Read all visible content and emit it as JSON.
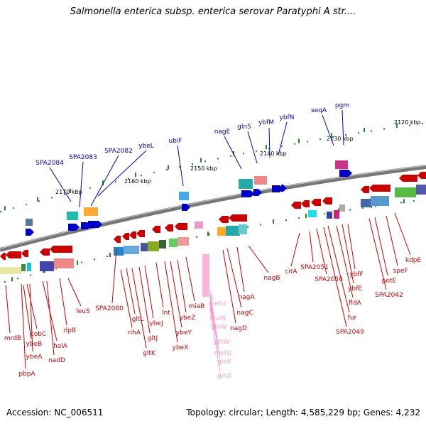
{
  "title": "Salmonella enterica subsp. enterica serovar Paratyphi A str....",
  "footer": {
    "accession": "Accession: NC_006511",
    "summary": "Topology: circular; Length: 4,585,229 bp; Genes: 4,232"
  },
  "colors": {
    "forward_gene": "#0000cc",
    "reverse_gene": "#cc0000",
    "rna_gene": "#ff99cc",
    "backbone": "#888888",
    "tick_mark": "#228822"
  },
  "scale_ticks": [
    "2170 kbp",
    "2160 kbp",
    "2150 kbp",
    "2140 kbp",
    "2130 kbp",
    "2120 kbp"
  ],
  "forward_genes": [
    "SPA2084",
    "SPA2083",
    "SPA2082",
    "ybeL",
    "ubiF",
    "nagE",
    "glnS",
    "ybfM",
    "ybfN",
    "seqA",
    "pgm"
  ],
  "reverse_genes": [
    "mrdB",
    "ybeB",
    "cobC",
    "ybeA",
    "pbpA",
    "holA",
    "nadD",
    "rlpB",
    "leuS",
    "SPA2080",
    "rihA",
    "gltL",
    "gltK",
    "gltJ",
    "ybeJ",
    "lnt",
    "ybeX",
    "ybeY",
    "ybeZ",
    "miaB",
    "nagD",
    "nagC",
    "nagA",
    "nagB",
    "citA",
    "SPA2051",
    "SPA2050",
    "fur",
    "SPA2049",
    "fldA",
    "ybfE",
    "ybfF",
    "SPA2042",
    "potE",
    "speF",
    "kdpE"
  ],
  "rna_genes": [
    "metU",
    "leuW",
    "glnW",
    "glnW",
    "metU",
    "glnX",
    "glnX"
  ]
}
